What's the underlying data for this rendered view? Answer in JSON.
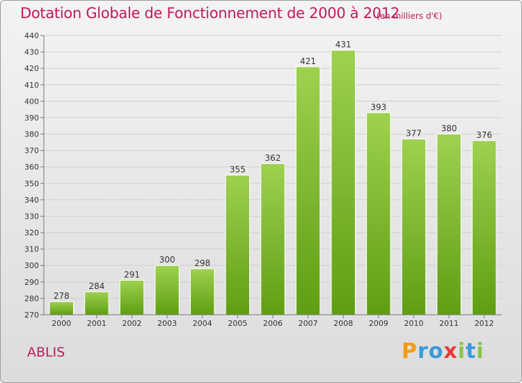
{
  "title": "Dotation Globale de Fonctionnement de 2000 à 2012",
  "unit": "(en milliers d'€)",
  "entity": "ABLIS",
  "logo": {
    "letters": [
      "P",
      "r",
      "o",
      "x",
      "i",
      "t",
      "i"
    ],
    "colors": [
      "#f39c12",
      "#3a9ad9",
      "#3a9ad9",
      "#e53935",
      "#8bc34a",
      "#3a9ad9",
      "#8bc34a"
    ]
  },
  "chart_data": {
    "type": "bar",
    "categories": [
      "2000",
      "2001",
      "2002",
      "2003",
      "2004",
      "2005",
      "2006",
      "2007",
      "2008",
      "2009",
      "2010",
      "2011",
      "2012"
    ],
    "values": [
      278,
      284,
      291,
      300,
      298,
      355,
      362,
      421,
      431,
      393,
      377,
      380,
      376
    ],
    "ylim": [
      270,
      440
    ],
    "yticks": [
      270,
      280,
      290,
      300,
      310,
      320,
      330,
      340,
      350,
      360,
      370,
      380,
      390,
      400,
      410,
      420,
      430,
      440
    ],
    "grid": true,
    "bar_color_top": "#9ed14f",
    "bar_color_bottom": "#5f9e12"
  }
}
